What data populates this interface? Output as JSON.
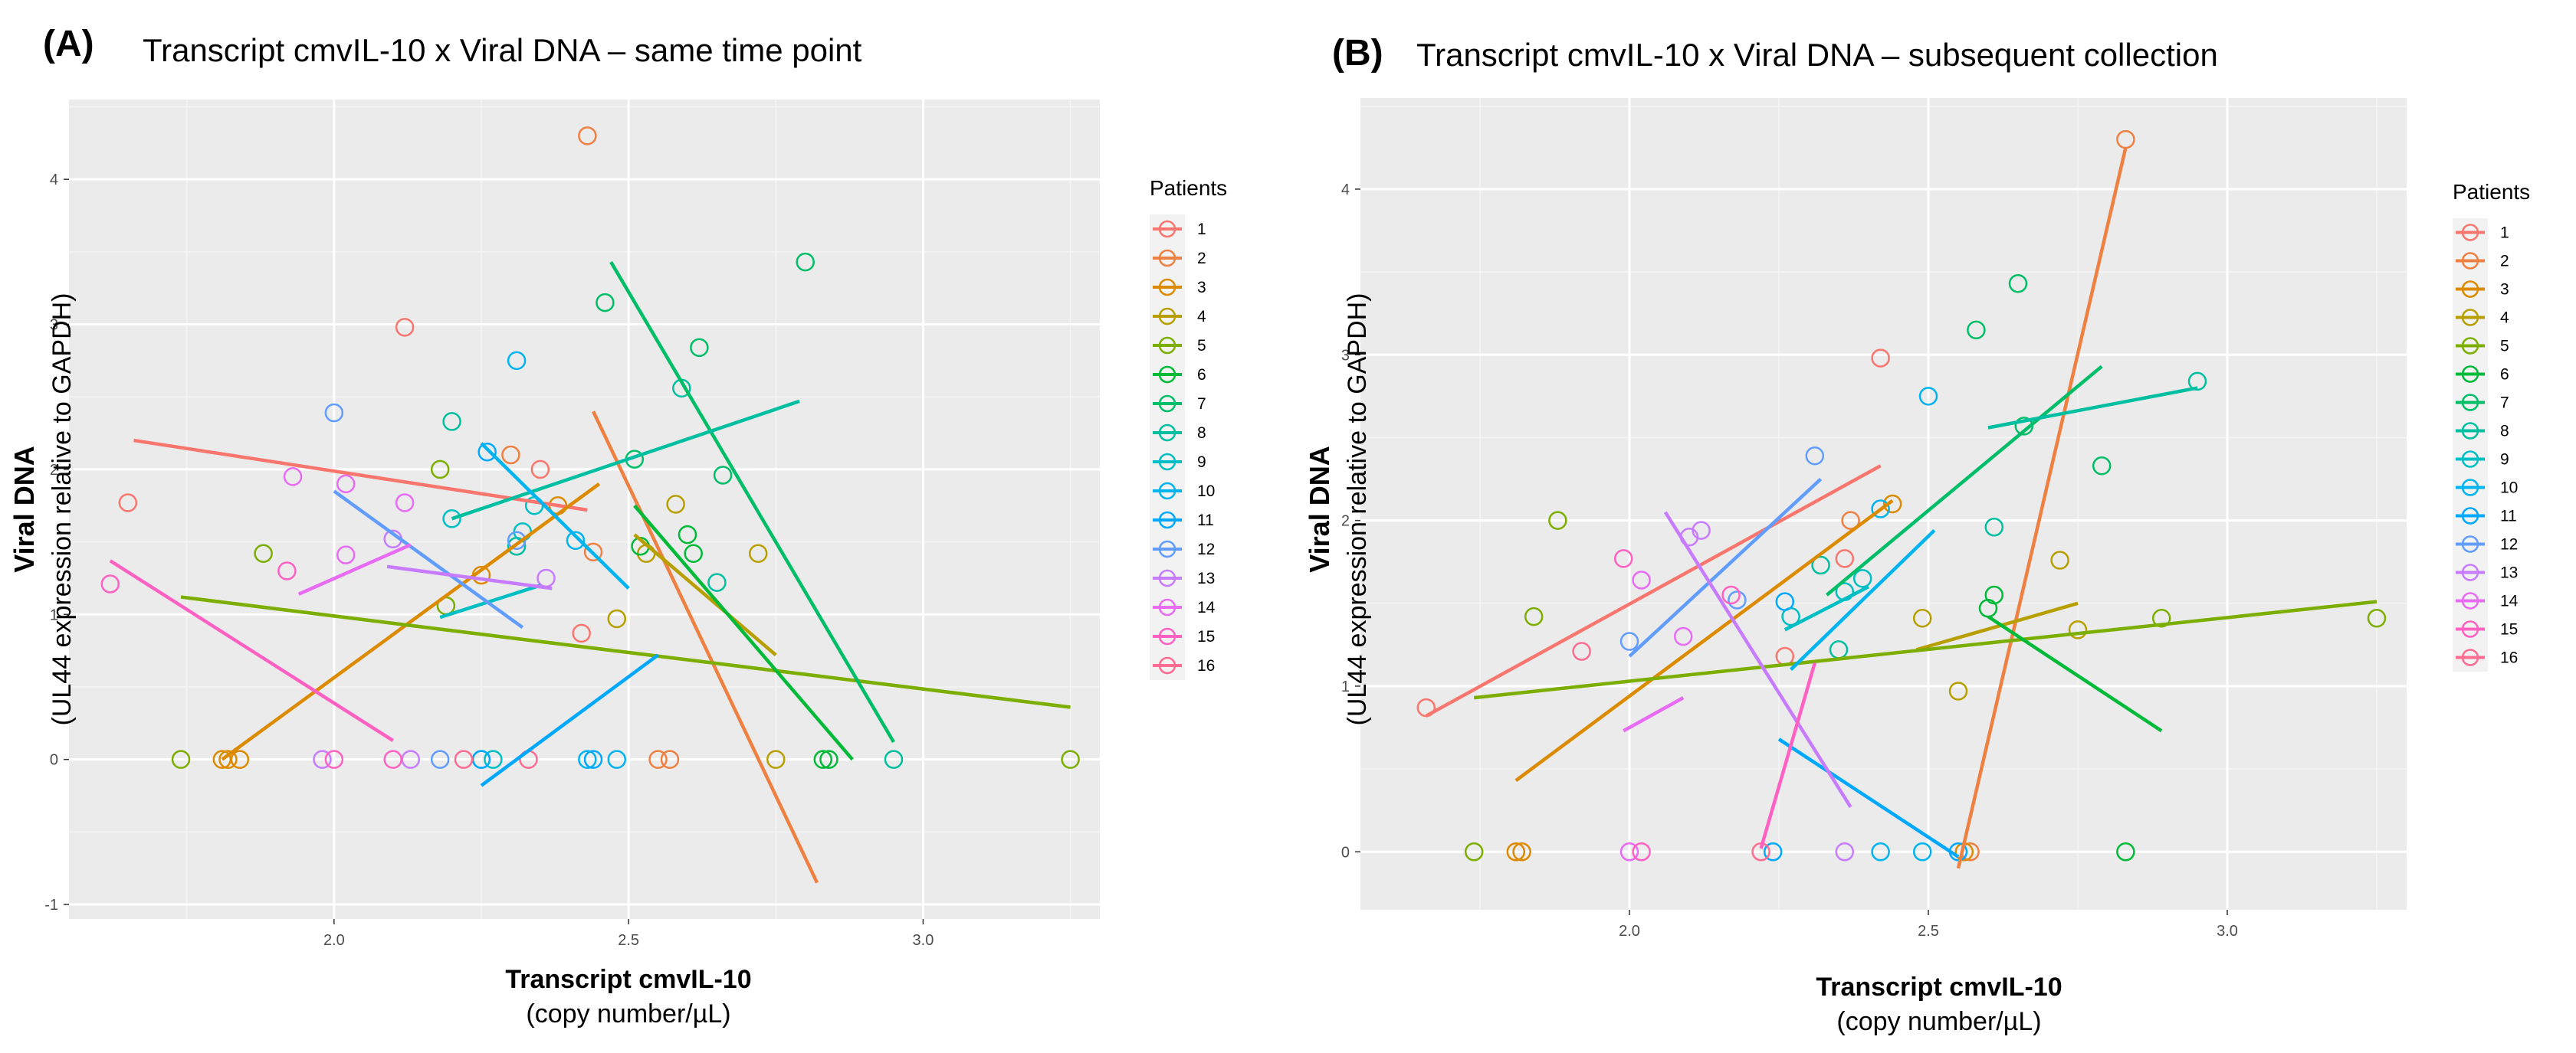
{
  "palette": [
    "#F8766D",
    "#EE8042",
    "#DC8A00",
    "#B79F00",
    "#7CAE00",
    "#00BA38",
    "#00BE67",
    "#00BFA0",
    "#00BFC4",
    "#00B4F0",
    "#00A9FF",
    "#619CFF",
    "#C77CFF",
    "#E76BF3",
    "#FF61C3",
    "#FF6C91"
  ],
  "chart_data": [
    {
      "id": "A",
      "tag": "(A)",
      "type": "scatter",
      "title": "Transcript cmvIL-10 x Viral DNA – same time point",
      "xlabel": "Transcript cmvIL-10",
      "xlabel_sub": "(copy number/µL)",
      "ylabel": "Viral DNA",
      "ylabel_sub": "(UL44 expression relative to GAPDH)",
      "xlim": [
        1.55,
        3.3
      ],
      "ylim": [
        -1.1,
        4.55
      ],
      "xticks": [
        "2.0",
        "2.5",
        "3.0"
      ],
      "xtick_values": [
        2.0,
        2.5,
        3.0
      ],
      "yticks": [
        "-1",
        "0",
        "1",
        "2",
        "3",
        "4"
      ],
      "ytick_values": [
        -1,
        0,
        1,
        2,
        3,
        4
      ],
      "grid": true,
      "legend": {
        "title": "Patients",
        "position": "right",
        "labels": [
          "1",
          "2",
          "3",
          "4",
          "5",
          "6",
          "7",
          "8",
          "9",
          "10",
          "11",
          "12",
          "13",
          "14",
          "15",
          "16"
        ]
      },
      "series": [
        {
          "name": "1",
          "points": [
            [
              1.65,
              1.77
            ],
            [
              2.12,
              2.98
            ],
            [
              2.42,
              0.87
            ],
            [
              2.35,
              2.0
            ]
          ],
          "fit": [
            [
              1.66,
              2.2
            ],
            [
              2.43,
              1.72
            ]
          ]
        },
        {
          "name": "2",
          "points": [
            [
              2.43,
              4.3
            ],
            [
              2.55,
              0.0
            ],
            [
              2.57,
              0.0
            ],
            [
              2.3,
              2.1
            ],
            [
              2.44,
              1.43
            ]
          ],
          "fit": [
            [
              2.44,
              2.4
            ],
            [
              2.82,
              -0.85
            ]
          ]
        },
        {
          "name": "3",
          "points": [
            [
              1.81,
              0.0
            ],
            [
              1.82,
              0.0
            ],
            [
              1.84,
              0.0
            ],
            [
              2.25,
              1.27
            ],
            [
              2.38,
              1.75
            ]
          ],
          "fit": [
            [
              1.81,
              0.0
            ],
            [
              2.45,
              1.9
            ]
          ]
        },
        {
          "name": "4",
          "points": [
            [
              2.48,
              0.97
            ],
            [
              2.58,
              1.76
            ],
            [
              2.75,
              0.0
            ],
            [
              2.72,
              1.42
            ],
            [
              2.53,
              1.42
            ]
          ],
          "fit": [
            [
              2.51,
              1.55
            ],
            [
              2.75,
              0.72
            ]
          ]
        },
        {
          "name": "5",
          "points": [
            [
              1.74,
              0.0
            ],
            [
              1.88,
              1.42
            ],
            [
              2.18,
              2.0
            ],
            [
              3.25,
              0.0
            ],
            [
              2.19,
              1.06
            ]
          ],
          "fit": [
            [
              1.74,
              1.12
            ],
            [
              3.25,
              0.36
            ]
          ]
        },
        {
          "name": "6",
          "points": [
            [
              2.6,
              1.55
            ],
            [
              2.61,
              1.42
            ],
            [
              2.83,
              0.0
            ],
            [
              2.84,
              0.0
            ],
            [
              2.52,
              1.47
            ]
          ],
          "fit": [
            [
              2.51,
              1.75
            ],
            [
              2.88,
              0.0
            ]
          ]
        },
        {
          "name": "7",
          "points": [
            [
              2.46,
              3.15
            ],
            [
              2.62,
              2.84
            ],
            [
              2.66,
              1.96
            ],
            [
              2.8,
              3.43
            ],
            [
              2.51,
              2.07
            ]
          ],
          "fit": [
            [
              2.47,
              3.43
            ],
            [
              2.95,
              0.12
            ]
          ]
        },
        {
          "name": "8",
          "points": [
            [
              2.2,
              2.33
            ],
            [
              2.59,
              2.56
            ],
            [
              2.65,
              1.22
            ],
            [
              2.95,
              0.0
            ],
            [
              2.31,
              1.47
            ]
          ],
          "fit": [
            [
              2.2,
              1.66
            ],
            [
              2.79,
              2.47
            ]
          ]
        },
        {
          "name": "9",
          "points": [
            [
              2.2,
              1.66
            ],
            [
              2.32,
              1.57
            ],
            [
              2.27,
              0.0
            ],
            [
              2.34,
              1.75
            ]
          ],
          "fit": [
            [
              2.18,
              0.98
            ],
            [
              2.35,
              1.2
            ]
          ]
        },
        {
          "name": "10",
          "points": [
            [
              2.25,
              0.0
            ],
            [
              2.43,
              0.0
            ],
            [
              2.48,
              0.0
            ],
            [
              2.41,
              1.51
            ],
            [
              2.31,
              2.75
            ]
          ],
          "fit": [
            [
              2.25,
              2.18
            ],
            [
              2.5,
              1.18
            ]
          ]
        },
        {
          "name": "11",
          "points": [
            [
              2.26,
              2.12
            ],
            [
              2.44,
              0.0
            ],
            [
              2.25,
              0.0
            ]
          ],
          "fit": [
            [
              2.25,
              -0.18
            ],
            [
              2.55,
              0.72
            ]
          ]
        },
        {
          "name": "12",
          "points": [
            [
              2.0,
              2.39
            ],
            [
              2.18,
              0.0
            ],
            [
              2.31,
              1.51
            ]
          ],
          "fit": [
            [
              2.0,
              1.85
            ],
            [
              2.32,
              0.91
            ]
          ]
        },
        {
          "name": "13",
          "points": [
            [
              2.1,
              1.52
            ],
            [
              2.36,
              1.25
            ],
            [
              2.13,
              0.0
            ],
            [
              1.98,
              0.0
            ]
          ],
          "fit": [
            [
              2.09,
              1.33
            ],
            [
              2.37,
              1.18
            ]
          ]
        },
        {
          "name": "14",
          "points": [
            [
              1.93,
              1.95
            ],
            [
              2.02,
              1.9
            ],
            [
              2.12,
              1.77
            ],
            [
              2.02,
              1.41
            ]
          ],
          "fit": [
            [
              1.94,
              1.14
            ],
            [
              2.13,
              1.48
            ]
          ]
        },
        {
          "name": "15",
          "points": [
            [
              1.62,
              1.21
            ],
            [
              1.92,
              1.3
            ],
            [
              2.0,
              0.0
            ],
            [
              2.1,
              0.0
            ]
          ],
          "fit": [
            [
              1.62,
              1.37
            ],
            [
              2.1,
              0.13
            ]
          ]
        },
        {
          "name": "16",
          "points": [
            [
              2.22,
              0.0
            ],
            [
              2.33,
              0.0
            ]
          ],
          "fit": null
        }
      ]
    },
    {
      "id": "B",
      "tag": "(B)",
      "type": "scatter",
      "title": "Transcript cmvIL-10 x Viral DNA – subsequent collection",
      "xlabel": "Transcript cmvIL-10",
      "xlabel_sub": "(copy number/µL)",
      "ylabel": "Viral DNA",
      "ylabel_sub": "(UL44 expression relative to GAPDH)",
      "xlim": [
        1.55,
        3.3
      ],
      "ylim": [
        -0.35,
        4.55
      ],
      "xticks": [
        "2.0",
        "2.5",
        "3.0"
      ],
      "xtick_values": [
        2.0,
        2.5,
        3.0
      ],
      "yticks": [
        "0",
        "1",
        "2",
        "3",
        "4"
      ],
      "ytick_values": [
        0,
        1,
        2,
        3,
        4
      ],
      "grid": true,
      "legend": {
        "title": "Patients",
        "position": "right",
        "labels": [
          "1",
          "2",
          "3",
          "4",
          "5",
          "6",
          "7",
          "8",
          "9",
          "10",
          "11",
          "12",
          "13",
          "14",
          "15",
          "16"
        ]
      },
      "series": [
        {
          "name": "1",
          "points": [
            [
              1.66,
              0.87
            ],
            [
              2.42,
              2.98
            ],
            [
              2.36,
              1.77
            ],
            [
              2.26,
              1.18
            ]
          ],
          "fit": [
            [
              1.66,
              0.82
            ],
            [
              2.42,
              2.33
            ]
          ]
        },
        {
          "name": "2",
          "points": [
            [
              2.83,
              4.3
            ],
            [
              2.57,
              0.0
            ],
            [
              2.37,
              2.0
            ]
          ],
          "fit": [
            [
              2.55,
              -0.1
            ],
            [
              2.83,
              4.25
            ]
          ]
        },
        {
          "name": "3",
          "points": [
            [
              1.81,
              0.0
            ],
            [
              1.82,
              0.0
            ],
            [
              2.44,
              2.1
            ],
            [
              2.56,
              0.0
            ]
          ],
          "fit": [
            [
              1.81,
              0.43
            ],
            [
              2.44,
              2.12
            ]
          ]
        },
        {
          "name": "4",
          "points": [
            [
              2.55,
              0.97
            ],
            [
              2.72,
              1.76
            ],
            [
              2.75,
              1.34
            ],
            [
              2.49,
              1.41
            ]
          ],
          "fit": [
            [
              2.48,
              1.22
            ],
            [
              2.75,
              1.5
            ]
          ]
        },
        {
          "name": "5",
          "points": [
            [
              1.74,
              0.0
            ],
            [
              1.88,
              2.0
            ],
            [
              1.84,
              1.42
            ],
            [
              3.25,
              1.41
            ],
            [
              2.89,
              1.41
            ]
          ],
          "fit": [
            [
              1.74,
              0.93
            ],
            [
              3.25,
              1.51
            ]
          ]
        },
        {
          "name": "6",
          "points": [
            [
              2.6,
              1.47
            ],
            [
              2.61,
              1.55
            ],
            [
              2.83,
              0.0
            ]
          ],
          "fit": [
            [
              2.6,
              1.42
            ],
            [
              2.89,
              0.73
            ]
          ]
        },
        {
          "name": "7",
          "points": [
            [
              2.58,
              3.15
            ],
            [
              2.65,
              3.43
            ],
            [
              2.79,
              2.33
            ],
            [
              2.66,
              2.57
            ]
          ],
          "fit": [
            [
              2.33,
              1.55
            ],
            [
              2.79,
              2.93
            ]
          ]
        },
        {
          "name": "8",
          "points": [
            [
              2.95,
              2.84
            ],
            [
              2.61,
              1.96
            ],
            [
              2.32,
              1.73
            ],
            [
              2.35,
              1.22
            ]
          ],
          "fit": [
            [
              2.6,
              2.56
            ],
            [
              2.95,
              2.8
            ]
          ]
        },
        {
          "name": "9",
          "points": [
            [
              2.39,
              1.65
            ],
            [
              2.36,
              1.57
            ],
            [
              2.27,
              1.42
            ]
          ],
          "fit": [
            [
              2.26,
              1.34
            ],
            [
              2.4,
              1.6
            ]
          ]
        },
        {
          "name": "10",
          "points": [
            [
              2.5,
              2.75
            ],
            [
              2.42,
              2.07
            ],
            [
              2.42,
              0.0
            ],
            [
              2.49,
              0.0
            ]
          ],
          "fit": [
            [
              2.27,
              1.1
            ],
            [
              2.51,
              1.94
            ]
          ]
        },
        {
          "name": "11",
          "points": [
            [
              2.26,
              1.51
            ],
            [
              2.24,
              0.0
            ],
            [
              2.55,
              0.0
            ]
          ],
          "fit": [
            [
              2.25,
              0.68
            ],
            [
              2.55,
              -0.03
            ]
          ]
        },
        {
          "name": "12",
          "points": [
            [
              2.31,
              2.39
            ],
            [
              2.0,
              1.27
            ],
            [
              2.18,
              1.52
            ]
          ],
          "fit": [
            [
              2.0,
              1.18
            ],
            [
              2.32,
              2.25
            ]
          ]
        },
        {
          "name": "13",
          "points": [
            [
              2.1,
              1.9
            ],
            [
              2.12,
              1.94
            ],
            [
              2.36,
              0.0
            ]
          ],
          "fit": [
            [
              2.06,
              2.05
            ],
            [
              2.37,
              0.27
            ]
          ]
        },
        {
          "name": "14",
          "points": [
            [
              2.02,
              1.64
            ],
            [
              2.0,
              0.0
            ],
            [
              2.09,
              1.3
            ]
          ],
          "fit": [
            [
              1.99,
              0.73
            ],
            [
              2.09,
              0.93
            ]
          ]
        },
        {
          "name": "15",
          "points": [
            [
              2.02,
              0.0
            ],
            [
              1.99,
              1.77
            ],
            [
              2.17,
              1.55
            ]
          ],
          "fit": [
            [
              2.22,
              0.02
            ],
            [
              2.31,
              1.14
            ]
          ]
        },
        {
          "name": "16",
          "points": [
            [
              2.22,
              0.0
            ],
            [
              1.92,
              1.21
            ]
          ],
          "fit": null
        }
      ]
    }
  ]
}
